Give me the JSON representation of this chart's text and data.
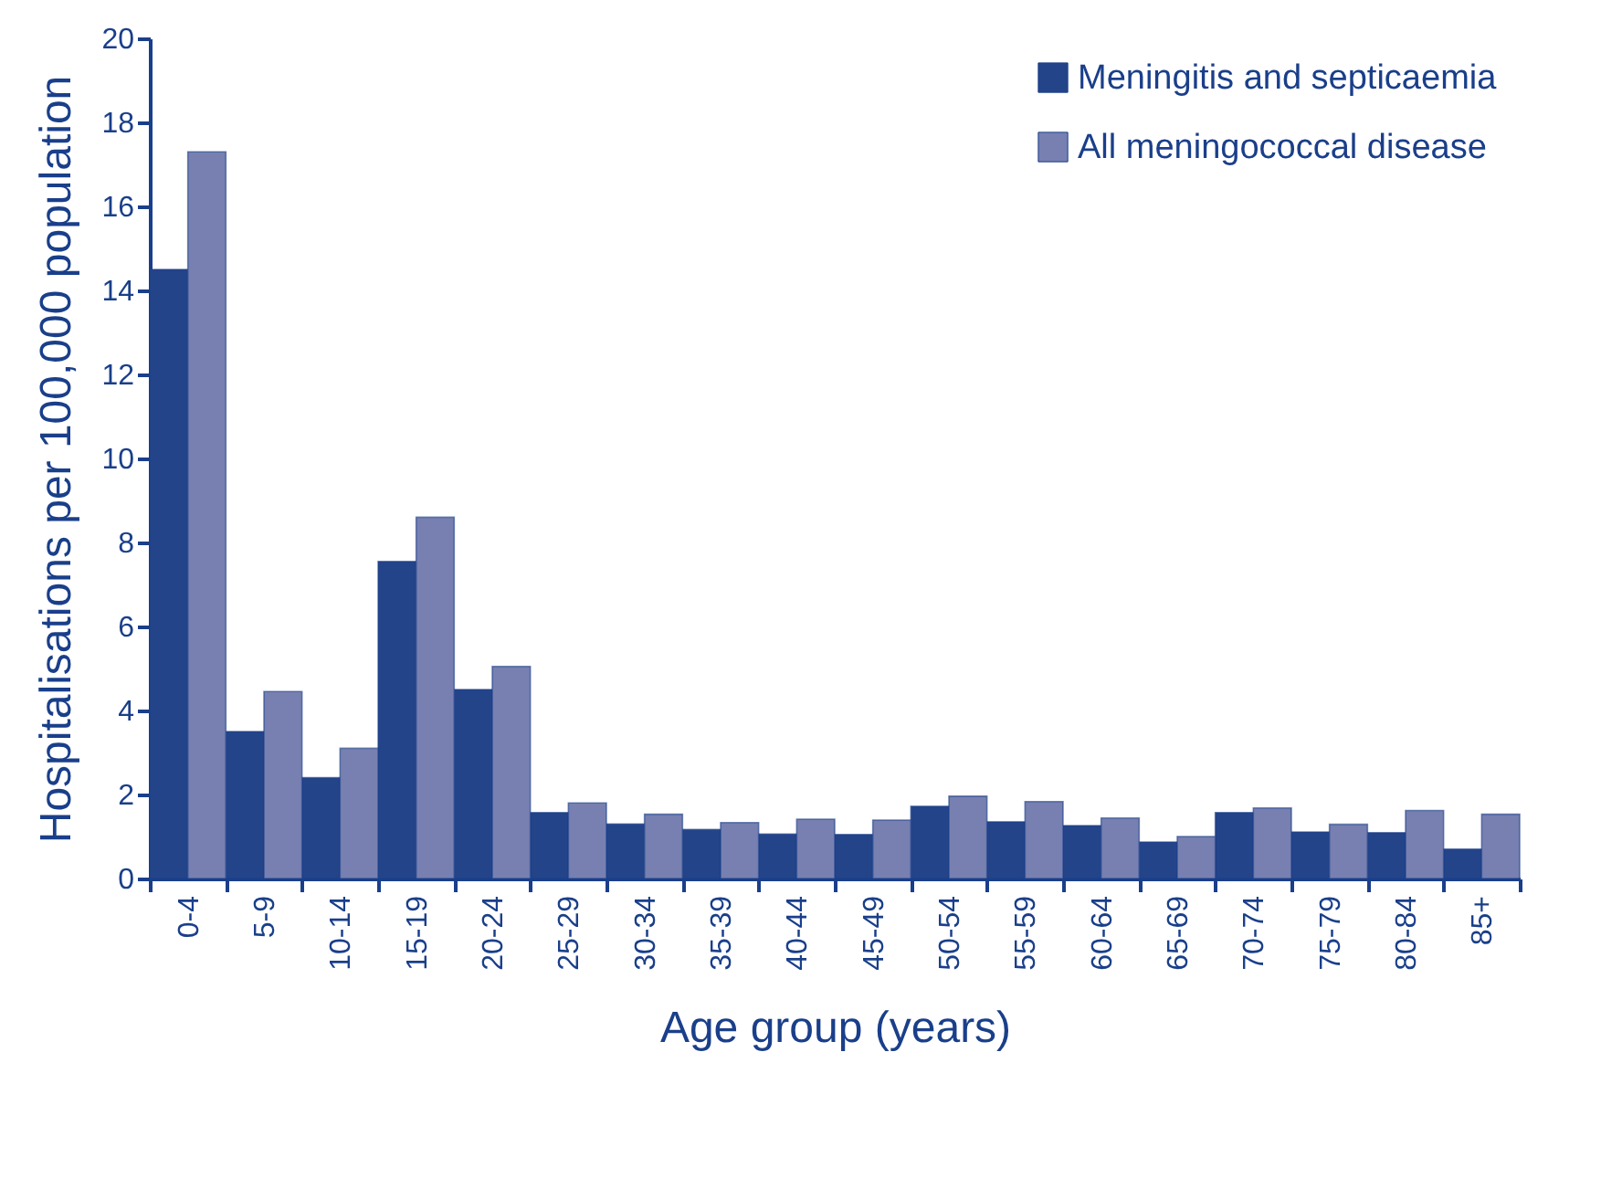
{
  "chart_data": {
    "type": "bar",
    "xlabel": "Age group (years)",
    "ylabel": "Hospitalisations per 100,000 population",
    "categories": [
      "0-4",
      "5-9",
      "10-14",
      "15-19",
      "20-24",
      "25-29",
      "30-34",
      "35-39",
      "40-44",
      "45-49",
      "50-54",
      "55-59",
      "60-64",
      "65-69",
      "70-74",
      "75-79",
      "80-84",
      "85+"
    ],
    "series": [
      {
        "name": "Meningitis and septicaemia",
        "color": "#24448a",
        "values": [
          14.5,
          3.5,
          2.4,
          7.55,
          4.5,
          1.57,
          1.3,
          1.17,
          1.06,
          1.05,
          1.72,
          1.35,
          1.26,
          0.87,
          1.57,
          1.11,
          1.09,
          0.7
        ]
      },
      {
        "name": "All meningococcal disease",
        "color": "#7780b0",
        "values": [
          17.3,
          4.45,
          3.1,
          8.6,
          5.05,
          1.8,
          1.53,
          1.33,
          1.41,
          1.39,
          1.96,
          1.83,
          1.44,
          1.0,
          1.68,
          1.29,
          1.62,
          1.53
        ]
      }
    ],
    "ylim": [
      0,
      20
    ],
    "yticks": [
      0,
      2,
      4,
      6,
      8,
      10,
      12,
      14,
      16,
      18,
      20
    ],
    "grid": false,
    "legend": "top right"
  }
}
